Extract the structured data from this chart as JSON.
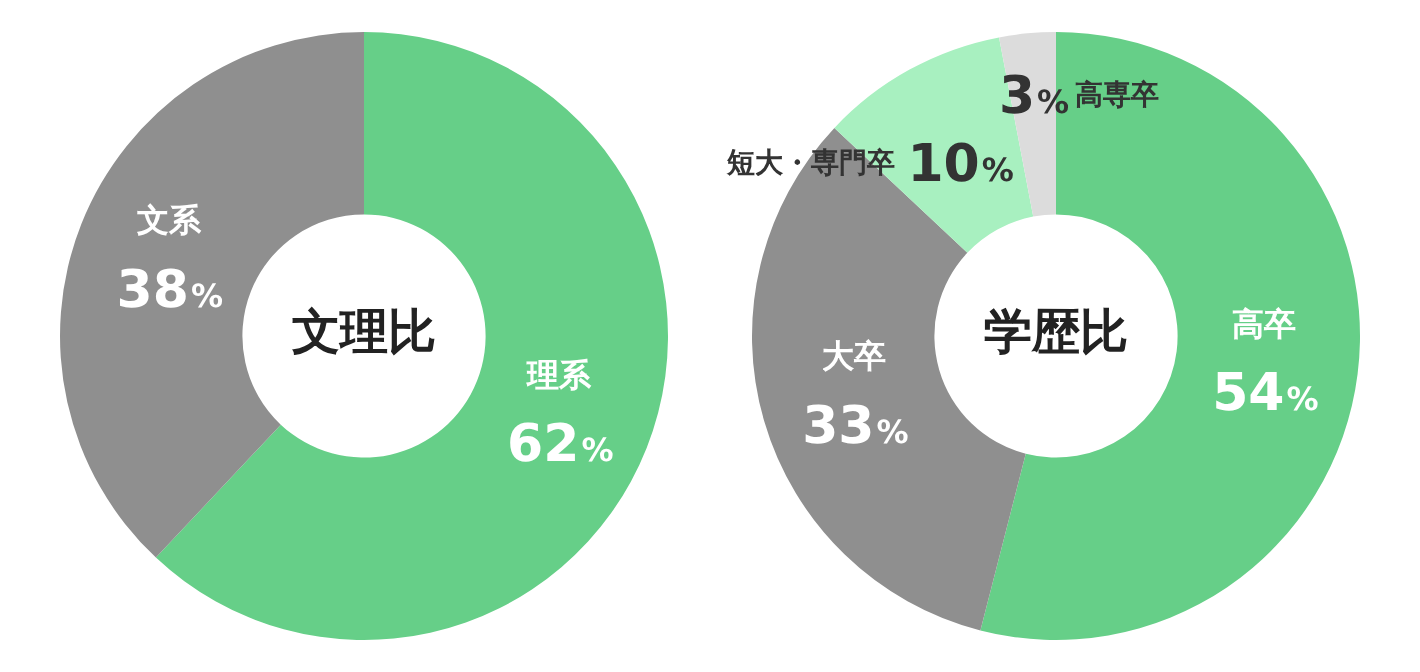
{
  "chart_data": [
    {
      "type": "donut",
      "title": "文理比",
      "categories": [
        "理系",
        "文系"
      ],
      "values": [
        62,
        38
      ],
      "colors": [
        "#66cf88",
        "#8f8f8f"
      ],
      "value_labels": [
        "62%",
        "38%"
      ]
    },
    {
      "type": "donut",
      "title": "学歴比",
      "categories": [
        "高卒",
        "大卒",
        "短大・専門卒",
        "高専卒"
      ],
      "values": [
        54,
        33,
        10,
        3
      ],
      "colors": [
        "#66cf88",
        "#8f8f8f",
        "#a8f0c0",
        "#dcdcdc"
      ],
      "value_labels": [
        "54%",
        "33%",
        "10%",
        "3%"
      ]
    }
  ]
}
